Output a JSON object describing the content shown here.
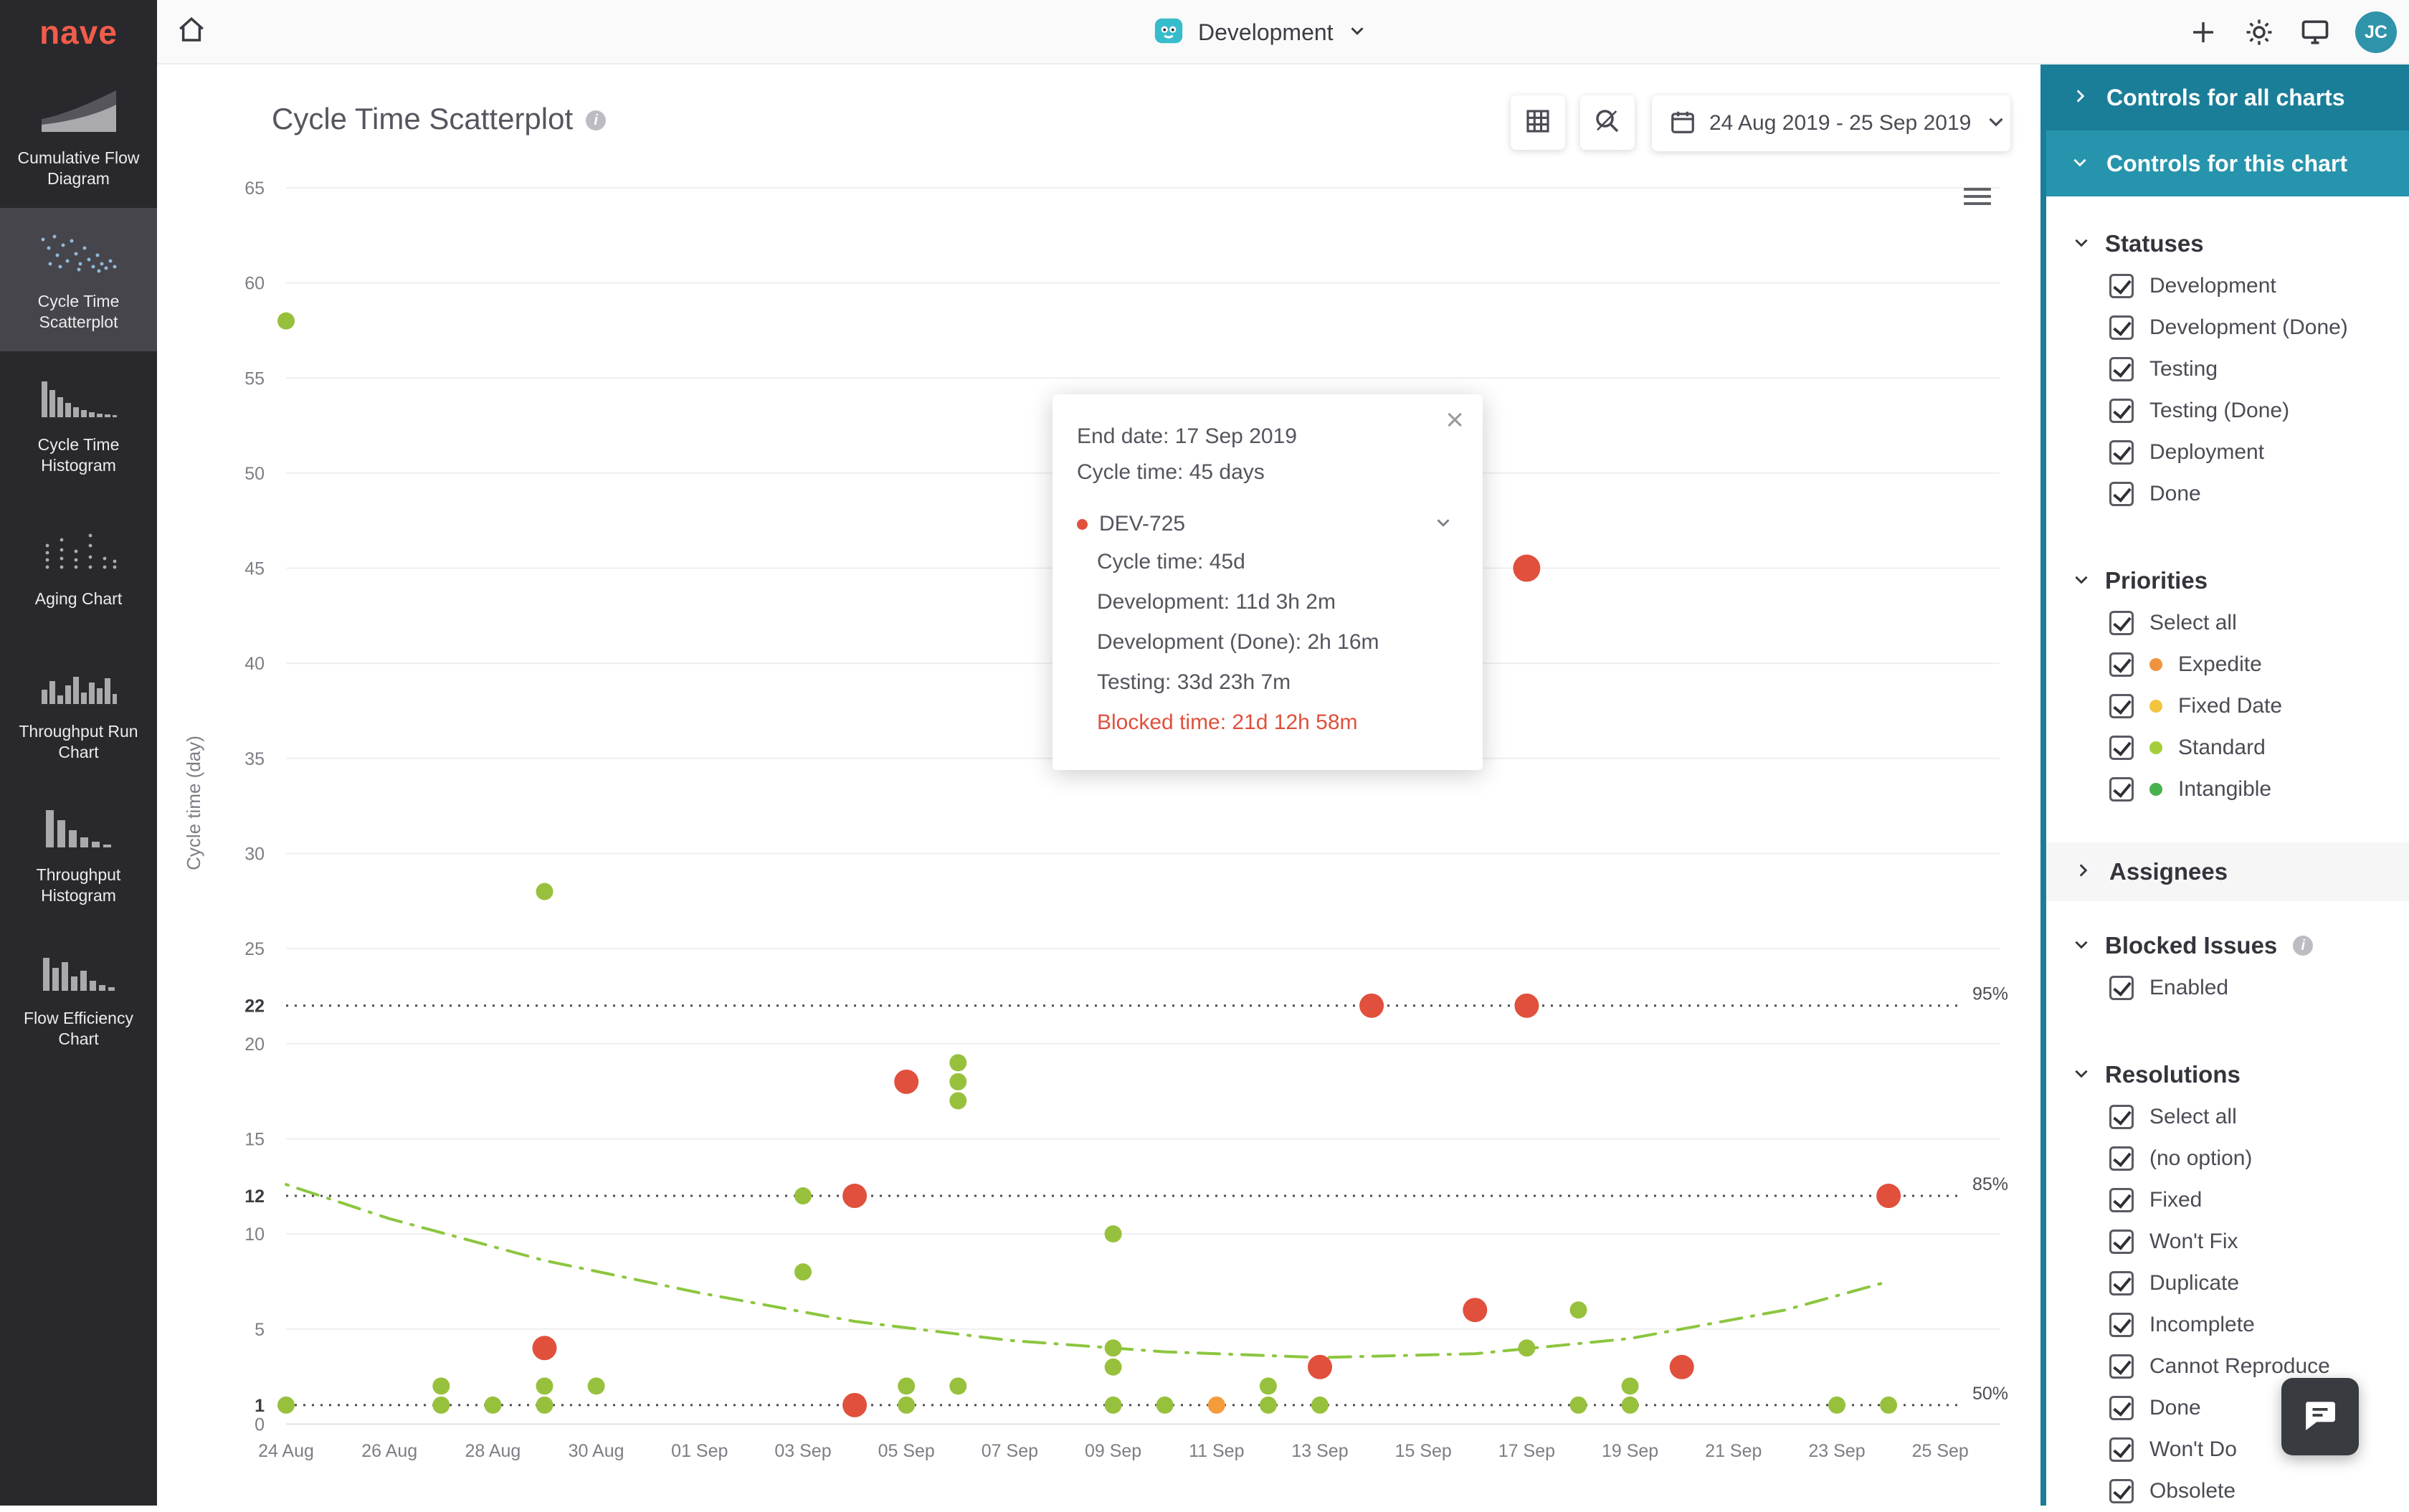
{
  "topbar": {
    "logo": "nave",
    "board_name": "Development",
    "avatar_initials": "JC"
  },
  "sidebar": {
    "items": [
      {
        "label": "Cumulative Flow Diagram"
      },
      {
        "label": "Cycle Time Scatterplot",
        "selected": true
      },
      {
        "label": "Cycle Time Histogram"
      },
      {
        "label": "Aging Chart"
      },
      {
        "label": "Throughput Run Chart"
      },
      {
        "label": "Throughput Histogram"
      },
      {
        "label": "Flow Efficiency Chart"
      }
    ]
  },
  "main": {
    "title": "Cycle Time Scatterplot",
    "date_range": "24 Aug 2019 - 25 Sep 2019"
  },
  "tooltip": {
    "end_date": "End date: 17 Sep 2019",
    "cycle_time": "Cycle time: 45 days",
    "issue_key": "DEV-725",
    "details": [
      "Cycle time: 45d",
      "Development: 11d 3h 2m",
      "Development (Done): 2h 16m",
      "Testing: 33d 23h 7m"
    ],
    "blocked_time": "Blocked time: 21d 12h 58m",
    "close_label": "×"
  },
  "controls": {
    "all_charts_header": "Controls for all charts",
    "this_chart_header": "Controls for this chart",
    "statuses": {
      "title": "Statuses",
      "items": [
        {
          "label": "Development",
          "checked": true
        },
        {
          "label": "Development (Done)",
          "checked": true
        },
        {
          "label": "Testing",
          "checked": true
        },
        {
          "label": "Testing (Done)",
          "checked": true
        },
        {
          "label": "Deployment",
          "checked": true
        },
        {
          "label": "Done",
          "checked": true
        }
      ]
    },
    "priorities": {
      "title": "Priorities",
      "items": [
        {
          "label": "Select all",
          "checked": true
        },
        {
          "label": "Expedite",
          "dot": "#f0933f",
          "checked": true
        },
        {
          "label": "Fixed Date",
          "dot": "#f3c43e",
          "checked": true
        },
        {
          "label": "Standard",
          "dot": "#a5cd3b",
          "checked": true
        },
        {
          "label": "Intangible",
          "dot": "#48b04c",
          "checked": true
        }
      ]
    },
    "assignees": {
      "title": "Assignees"
    },
    "blocked_issues": {
      "title": "Blocked Issues",
      "items": [
        {
          "label": "Enabled",
          "checked": true
        }
      ]
    },
    "resolutions": {
      "title": "Resolutions",
      "items": [
        {
          "label": "Select all",
          "checked": true
        },
        {
          "label": "(no option)",
          "checked": true
        },
        {
          "label": "Fixed",
          "checked": true
        },
        {
          "label": "Won't Fix",
          "checked": true
        },
        {
          "label": "Duplicate",
          "checked": true
        },
        {
          "label": "Incomplete",
          "checked": true
        },
        {
          "label": "Cannot Reproduce",
          "checked": true
        },
        {
          "label": "Done",
          "checked": true
        },
        {
          "label": "Won't Do",
          "checked": true
        },
        {
          "label": "Obsolete",
          "checked": true
        }
      ]
    }
  },
  "chart_data": {
    "type": "scatter",
    "title": "Cycle Time Scatterplot",
    "ylabel": "Cycle time (day)",
    "ylim": [
      0,
      65
    ],
    "grid": true,
    "x_ticks": [
      "24 Aug",
      "26 Aug",
      "28 Aug",
      "30 Aug",
      "01 Sep",
      "03 Sep",
      "05 Sep",
      "07 Sep",
      "09 Sep",
      "11 Sep",
      "13 Sep",
      "15 Sep",
      "17 Sep",
      "19 Sep",
      "21 Sep",
      "23 Sep",
      "25 Sep"
    ],
    "x_tick_day_step": 2,
    "gridline_values": [
      0,
      5,
      10,
      15,
      20,
      25,
      30,
      35,
      40,
      45,
      50,
      55,
      60,
      65
    ],
    "y_ticks": [
      {
        "v": 0,
        "label": "0"
      },
      {
        "v": 1,
        "label": "1",
        "bold": true
      },
      {
        "v": 5,
        "label": "5"
      },
      {
        "v": 10,
        "label": "10"
      },
      {
        "v": 12,
        "label": "12",
        "bold": true
      },
      {
        "v": 15,
        "label": "15"
      },
      {
        "v": 20,
        "label": "20"
      },
      {
        "v": 22,
        "label": "22",
        "bold": true
      },
      {
        "v": 25,
        "label": "25"
      },
      {
        "v": 30,
        "label": "30"
      },
      {
        "v": 35,
        "label": "35"
      },
      {
        "v": 40,
        "label": "40"
      },
      {
        "v": 45,
        "label": "45"
      },
      {
        "v": 50,
        "label": "50"
      },
      {
        "v": 55,
        "label": "55"
      },
      {
        "v": 60,
        "label": "60"
      },
      {
        "v": 65,
        "label": "65"
      }
    ],
    "percentiles": [
      {
        "value": 22,
        "label": "95%"
      },
      {
        "value": 12,
        "label": "85%"
      },
      {
        "value": 1,
        "label": "50%"
      }
    ],
    "trend": [
      [
        0,
        12.6
      ],
      [
        2,
        10.8
      ],
      [
        5,
        8.6
      ],
      [
        8,
        6.9
      ],
      [
        11,
        5.4
      ],
      [
        14,
        4.4
      ],
      [
        17,
        3.8
      ],
      [
        20,
        3.5
      ],
      [
        23,
        3.7
      ],
      [
        26,
        4.5
      ],
      [
        29,
        6.0
      ],
      [
        31,
        7.5
      ]
    ],
    "colors": {
      "green": "#97c13d",
      "red": "#e0503c",
      "orange": "#f49b3c",
      "trend": "#8cc63f"
    },
    "points": [
      {
        "day": 0,
        "value": 58,
        "color": "green"
      },
      {
        "day": 0,
        "value": 1,
        "color": "green"
      },
      {
        "day": 3,
        "value": 2,
        "color": "green"
      },
      {
        "day": 3,
        "value": 1,
        "color": "green"
      },
      {
        "day": 4,
        "value": 1,
        "color": "green"
      },
      {
        "day": 5,
        "value": 28,
        "color": "green"
      },
      {
        "day": 5,
        "value": 4,
        "color": "red"
      },
      {
        "day": 5,
        "value": 2,
        "color": "green"
      },
      {
        "day": 5,
        "value": 1,
        "color": "green"
      },
      {
        "day": 6,
        "value": 2,
        "color": "green"
      },
      {
        "day": 10,
        "value": 12,
        "color": "green"
      },
      {
        "day": 10,
        "value": 8,
        "color": "green"
      },
      {
        "day": 11,
        "value": 12,
        "color": "red"
      },
      {
        "day": 11,
        "value": 1,
        "color": "red"
      },
      {
        "day": 12,
        "value": 18,
        "color": "red"
      },
      {
        "day": 12,
        "value": 2,
        "color": "green"
      },
      {
        "day": 12,
        "value": 1,
        "color": "green"
      },
      {
        "day": 13,
        "value": 19,
        "color": "green"
      },
      {
        "day": 13,
        "value": 18,
        "color": "green"
      },
      {
        "day": 13,
        "value": 17,
        "color": "green"
      },
      {
        "day": 13,
        "value": 2,
        "color": "green"
      },
      {
        "day": 16,
        "value": 10,
        "color": "green"
      },
      {
        "day": 16,
        "value": 4,
        "color": "green"
      },
      {
        "day": 16,
        "value": 3,
        "color": "green"
      },
      {
        "day": 16,
        "value": 1,
        "color": "green"
      },
      {
        "day": 17,
        "value": 1,
        "color": "green"
      },
      {
        "day": 18,
        "value": 1,
        "color": "orange"
      },
      {
        "day": 19,
        "value": 2,
        "color": "green"
      },
      {
        "day": 19,
        "value": 1,
        "color": "green"
      },
      {
        "day": 20,
        "value": 3,
        "color": "red"
      },
      {
        "day": 20,
        "value": 1,
        "color": "green"
      },
      {
        "day": 21,
        "value": 22,
        "color": "red"
      },
      {
        "day": 23,
        "value": 6,
        "color": "red"
      },
      {
        "day": 24,
        "value": 45,
        "color": "red",
        "highlight": true
      },
      {
        "day": 24,
        "value": 22,
        "color": "red"
      },
      {
        "day": 24,
        "value": 4,
        "color": "green"
      },
      {
        "day": 25,
        "value": 6,
        "color": "green"
      },
      {
        "day": 25,
        "value": 1,
        "color": "green"
      },
      {
        "day": 26,
        "value": 2,
        "color": "green"
      },
      {
        "day": 26,
        "value": 1,
        "color": "green"
      },
      {
        "day": 27,
        "value": 3,
        "color": "red"
      },
      {
        "day": 30,
        "value": 1,
        "color": "green"
      },
      {
        "day": 31,
        "value": 12,
        "color": "red"
      },
      {
        "day": 31,
        "value": 1,
        "color": "green"
      }
    ]
  }
}
